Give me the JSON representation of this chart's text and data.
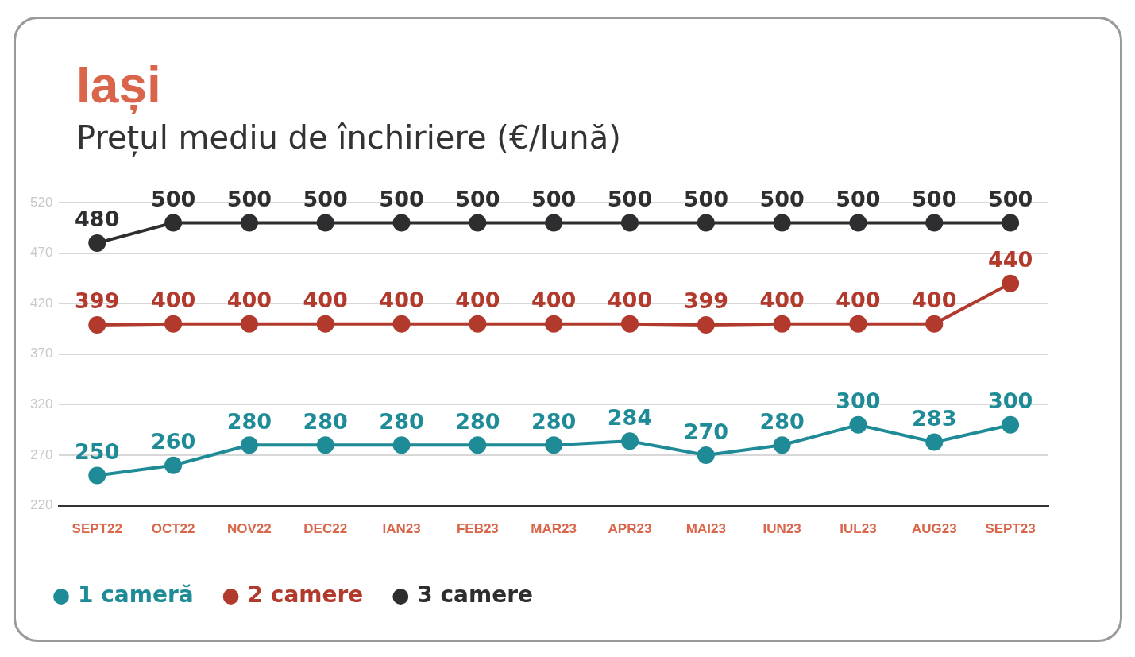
{
  "chart_data": {
    "type": "line",
    "title": "Iași",
    "subtitle": "Prețul mediu de închiriere (€/lună)",
    "categories": [
      "SEPT22",
      "OCT22",
      "NOV22",
      "DEC22",
      "IAN23",
      "FEB23",
      "MAR23",
      "APR23",
      "MAI23",
      "IUN23",
      "IUL23",
      "AUG23",
      "SEPT23"
    ],
    "series": [
      {
        "name": "1 cameră",
        "color": "#1e8b97",
        "values": [
          250,
          260,
          280,
          280,
          280,
          280,
          280,
          284,
          270,
          280,
          300,
          283,
          300
        ]
      },
      {
        "name": "2 camere",
        "color": "#b23a2d",
        "values": [
          399,
          400,
          400,
          400,
          400,
          400,
          400,
          400,
          399,
          400,
          400,
          400,
          440
        ]
      },
      {
        "name": "3 camere",
        "color": "#2e2e30",
        "values": [
          480,
          500,
          500,
          500,
          500,
          500,
          500,
          500,
          500,
          500,
          500,
          500,
          500
        ]
      }
    ],
    "ylim": [
      220,
      520
    ],
    "yticks": [
      220,
      270,
      320,
      370,
      420,
      470,
      520
    ],
    "grid": "y",
    "legend": "bottom left",
    "marker": "circle",
    "line_style": "solid",
    "data_labels": true
  }
}
